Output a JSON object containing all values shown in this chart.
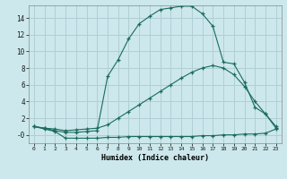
{
  "xlabel": "Humidex (Indice chaleur)",
  "bg_color": "#cce8ec",
  "grid_color": "#b0cfd4",
  "line_color": "#1a6b5e",
  "x_ticks": [
    0,
    1,
    2,
    3,
    4,
    5,
    6,
    7,
    8,
    9,
    10,
    11,
    12,
    13,
    14,
    15,
    16,
    17,
    18,
    19,
    20,
    21,
    22,
    23
  ],
  "ylim": [
    -1.0,
    15.5
  ],
  "xlim": [
    -0.5,
    23.5
  ],
  "yticks": [
    0,
    2,
    4,
    6,
    8,
    10,
    12,
    14
  ],
  "ytick_labels": [
    "-0",
    "2",
    "4",
    "6",
    "8",
    "10",
    "12",
    "14"
  ],
  "series1_x": [
    0,
    1,
    2,
    3,
    4,
    5,
    6,
    7,
    8,
    9,
    10,
    11,
    12,
    13,
    14,
    15,
    16,
    17,
    18,
    19,
    20,
    21,
    22,
    23
  ],
  "series1_y": [
    1.0,
    0.7,
    0.4,
    -0.4,
    -0.4,
    -0.4,
    -0.4,
    -0.3,
    -0.3,
    -0.2,
    -0.2,
    -0.2,
    -0.2,
    -0.2,
    -0.2,
    -0.2,
    -0.1,
    -0.1,
    0.0,
    0.0,
    0.1,
    0.1,
    0.2,
    0.7
  ],
  "series2_x": [
    0,
    1,
    2,
    3,
    4,
    5,
    6,
    7,
    8,
    9,
    10,
    11,
    12,
    13,
    14,
    15,
    16,
    17,
    18,
    19,
    20,
    21,
    22,
    23
  ],
  "series2_y": [
    1.0,
    0.8,
    0.7,
    0.5,
    0.6,
    0.7,
    0.8,
    1.2,
    2.0,
    2.8,
    3.6,
    4.4,
    5.2,
    6.0,
    6.8,
    7.5,
    8.0,
    8.3,
    8.0,
    7.2,
    5.8,
    4.0,
    2.5,
    1.0
  ],
  "series3_x": [
    0,
    1,
    2,
    3,
    4,
    5,
    6,
    7,
    8,
    9,
    10,
    11,
    12,
    13,
    14,
    15,
    16,
    17,
    18,
    19,
    20,
    21,
    22,
    23
  ],
  "series3_y": [
    1.0,
    0.8,
    0.5,
    0.3,
    0.3,
    0.4,
    0.5,
    7.0,
    9.0,
    11.5,
    13.3,
    14.2,
    15.0,
    15.2,
    15.4,
    15.4,
    14.5,
    13.0,
    8.7,
    8.5,
    6.3,
    3.3,
    2.5,
    0.8
  ]
}
